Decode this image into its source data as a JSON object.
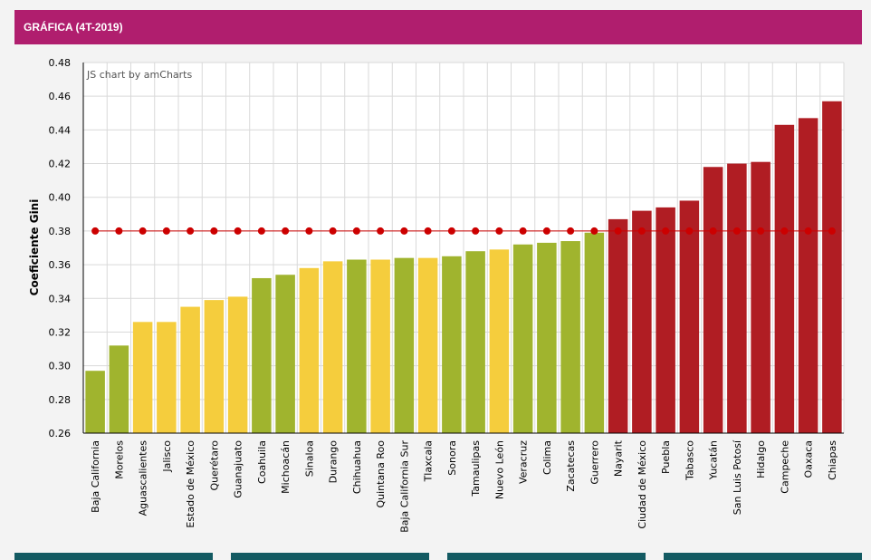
{
  "header": {
    "title": "GRÁFICA (4T-2019)"
  },
  "chart_data": {
    "type": "bar",
    "credit": "JS chart by amCharts",
    "ylabel": "Coeficiente Gini",
    "ylim": [
      0.26,
      0.48
    ],
    "yticks": [
      "0.26",
      "0.28",
      "0.30",
      "0.32",
      "0.34",
      "0.36",
      "0.38",
      "0.40",
      "0.42",
      "0.44",
      "0.46",
      "0.48"
    ],
    "grid": true,
    "reference_line": 0.38,
    "colors": {
      "green": "#a0b42e",
      "yellow": "#f5cd3d",
      "red": "#b01d23",
      "reference": "#cc0000"
    },
    "categories": [
      "Baja California",
      "Morelos",
      "Aguascalientes",
      "Jalisco",
      "Estado de México",
      "Querétaro",
      "Guanajuato",
      "Coahuila",
      "Michoacán",
      "Sinaloa",
      "Durango",
      "Chihuahua",
      "Quintana Roo",
      "Baja California Sur",
      "Tlaxcala",
      "Sonora",
      "Tamaulipas",
      "Nuevo León",
      "Veracruz",
      "Colima",
      "Zacatecas",
      "Guerrero",
      "Nayarit",
      "Ciudad de México",
      "Puebla",
      "Tabasco",
      "Yucatán",
      "San Luis Potosí",
      "Hidalgo",
      "Campeche",
      "Oaxaca",
      "Chiapas"
    ],
    "values": [
      0.297,
      0.312,
      0.326,
      0.326,
      0.335,
      0.339,
      0.341,
      0.352,
      0.354,
      0.358,
      0.362,
      0.363,
      0.363,
      0.364,
      0.364,
      0.365,
      0.368,
      0.369,
      0.372,
      0.373,
      0.374,
      0.379,
      0.387,
      0.392,
      0.394,
      0.398,
      0.418,
      0.42,
      0.421,
      0.443,
      0.447,
      0.457
    ],
    "bar_colors": [
      "green",
      "green",
      "yellow",
      "yellow",
      "yellow",
      "yellow",
      "yellow",
      "green",
      "green",
      "yellow",
      "yellow",
      "green",
      "yellow",
      "green",
      "yellow",
      "green",
      "green",
      "yellow",
      "green",
      "green",
      "green",
      "green",
      "red",
      "red",
      "red",
      "red",
      "red",
      "red",
      "red",
      "red",
      "red",
      "red"
    ]
  }
}
